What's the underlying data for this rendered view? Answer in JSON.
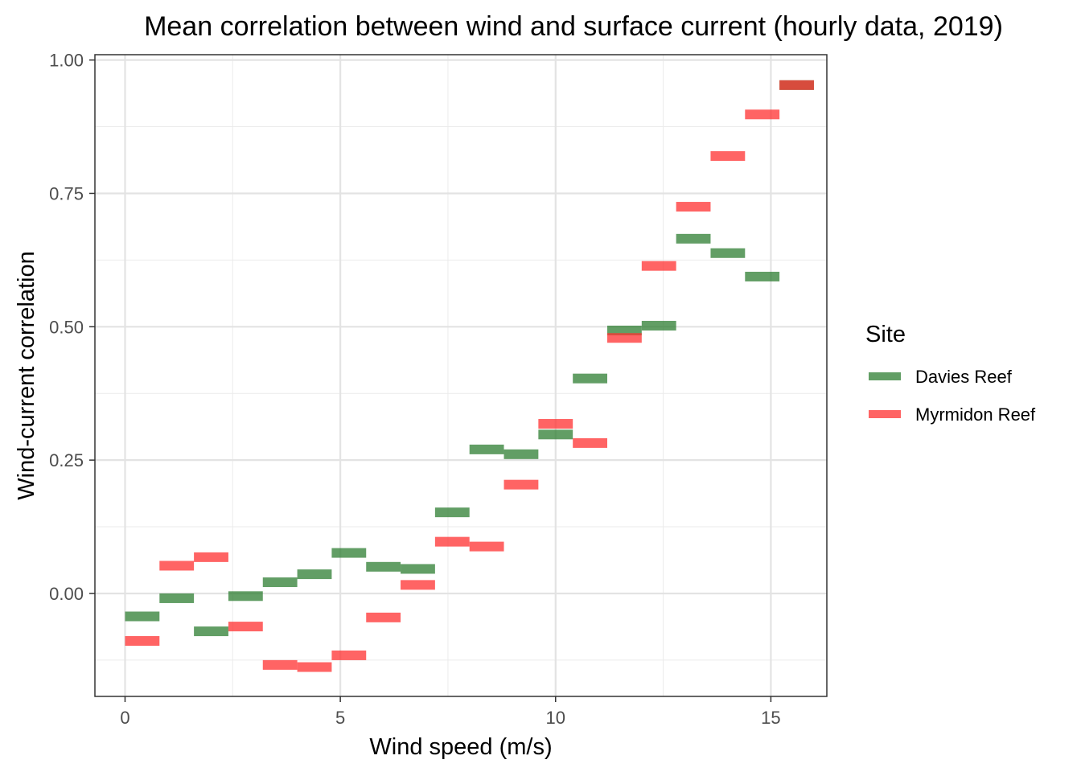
{
  "chart_data": {
    "type": "scatter",
    "title": "Mean correlation between wind and surface current (hourly data, 2019)",
    "xlabel": "Wind speed (m/s)",
    "ylabel": "Wind-current correlation",
    "xlim": [
      -0.7,
      16.3
    ],
    "ylim": [
      -0.193,
      1.01
    ],
    "x_ticks": [
      0,
      5,
      10,
      15
    ],
    "x_tick_labels": [
      "0",
      "5",
      "10",
      "15"
    ],
    "y_ticks": [
      0,
      0.25,
      0.5,
      0.75,
      1
    ],
    "y_tick_labels": [
      "0.00",
      "0.25",
      "0.50",
      "0.75",
      "1.00"
    ],
    "grid": true,
    "legend": {
      "title": "Site",
      "position": "right"
    },
    "segment_width": 0.8,
    "series": [
      {
        "name": "Davies Reef",
        "color": "#2e7d32",
        "x": [
          0.4,
          1.2,
          2.0,
          2.8,
          3.6,
          4.4,
          5.2,
          6.0,
          6.8,
          7.6,
          8.4,
          9.2,
          10.0,
          10.8,
          11.6,
          12.4,
          13.2,
          14.0,
          14.8,
          15.6
        ],
        "y": [
          -0.043,
          -0.009,
          -0.071,
          -0.005,
          0.021,
          0.036,
          0.076,
          0.05,
          0.046,
          0.152,
          0.27,
          0.261,
          0.298,
          0.403,
          0.493,
          0.502,
          0.665,
          0.638,
          0.594,
          0.953
        ]
      },
      {
        "name": "Myrmidon Reef",
        "color": "#ff3030",
        "x": [
          0.4,
          1.2,
          2.0,
          2.8,
          3.6,
          4.4,
          5.2,
          6.0,
          6.8,
          7.6,
          8.4,
          9.2,
          10.0,
          10.8,
          11.6,
          12.4,
          13.2,
          14.0,
          14.8,
          15.6
        ],
        "y": [
          -0.089,
          0.052,
          0.068,
          -0.062,
          -0.134,
          -0.138,
          -0.116,
          -0.045,
          0.016,
          0.097,
          0.088,
          0.204,
          0.318,
          0.282,
          0.479,
          0.614,
          0.725,
          0.82,
          0.898,
          0.953
        ]
      }
    ]
  }
}
